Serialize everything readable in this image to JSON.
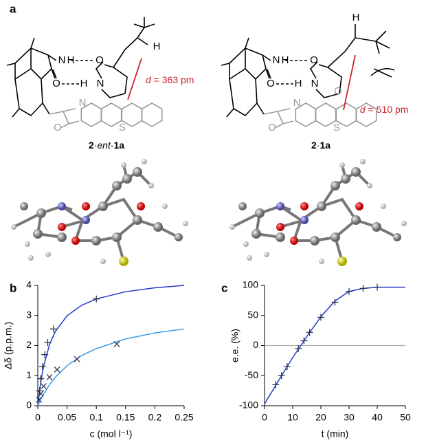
{
  "panel_labels": [
    "a",
    "b",
    "c"
  ],
  "structures": [
    {
      "compound": [
        "2",
        "·",
        "ent",
        "-",
        "1a"
      ],
      "distance": [
        "d",
        " = 363 pm"
      ],
      "atoms": [
        "N",
        "H",
        "O",
        "O",
        "H",
        "N",
        "H",
        "N",
        "O",
        "S"
      ]
    },
    {
      "compound": [
        "2",
        "·",
        "1a"
      ],
      "distance": [
        "d",
        " = 510 pm"
      ],
      "atoms": [
        "N",
        "H",
        "O",
        "O",
        "H",
        "N",
        "H",
        "N",
        "O",
        "O",
        "S"
      ]
    }
  ],
  "chart_data": [
    {
      "type": "scatter",
      "xlabel": "c (mol l⁻¹)",
      "ylabel": "Δδ (p.p.m.)",
      "xlim": [
        0,
        0.25
      ],
      "xticks": [
        0,
        0.05,
        0.1,
        0.15,
        0.2,
        0.25
      ],
      "ylim": [
        0,
        4
      ],
      "yticks": [
        0,
        1,
        2,
        3,
        4
      ],
      "series": [
        {
          "color": "#2438c8",
          "line": true,
          "x": [
            0,
            0.005,
            0.01,
            0.02,
            0.03,
            0.05,
            0.075,
            0.1,
            0.15,
            0.2,
            0.25
          ],
          "values": [
            0,
            0.78,
            1.32,
            2.03,
            2.47,
            2.99,
            3.34,
            3.55,
            3.79,
            3.92,
            4.0
          ]
        },
        {
          "color": "#3b9de6",
          "line": true,
          "x": [
            0,
            0.005,
            0.01,
            0.02,
            0.03,
            0.05,
            0.075,
            0.1,
            0.15,
            0.2,
            0.25
          ],
          "values": [
            0,
            0.21,
            0.39,
            0.7,
            0.95,
            1.33,
            1.67,
            1.9,
            2.22,
            2.42,
            2.55
          ]
        },
        {
          "color": "#2b3550",
          "marker": "plus",
          "x": [
            0.003,
            0.005,
            0.008,
            0.012,
            0.017,
            0.027,
            0.1
          ],
          "values": [
            0.5,
            0.9,
            1.3,
            1.7,
            2.1,
            2.55,
            3.55
          ]
        },
        {
          "color": "#2b3550",
          "marker": "cross",
          "x": [
            0.002,
            0.005,
            0.01,
            0.02,
            0.033,
            0.067,
            0.135
          ],
          "values": [
            0.2,
            0.4,
            0.65,
            0.95,
            1.2,
            1.55,
            2.05
          ]
        }
      ]
    },
    {
      "type": "scatter",
      "xlabel": "t (min)",
      "ylabel": "e.e. (%)",
      "xlim": [
        0,
        50
      ],
      "xticks": [
        0,
        10,
        20,
        30,
        40,
        50
      ],
      "ylim": [
        -100,
        100
      ],
      "yticks": [
        -100,
        -50,
        0,
        50,
        100
      ],
      "reference_line": {
        "y": 0,
        "color": "#aaaaaa"
      },
      "series": [
        {
          "color": "#2438c8",
          "line": true,
          "x": [
            0,
            5,
            10,
            15,
            20,
            25,
            30,
            35,
            40,
            45,
            50
          ],
          "values": [
            -97,
            -58,
            -20,
            15,
            48,
            74,
            90,
            95,
            97,
            97,
            97
          ]
        },
        {
          "color": "#2b3550",
          "marker": "plus",
          "x": [
            4,
            6,
            8,
            12,
            14,
            16,
            20,
            25,
            30,
            35,
            40
          ],
          "values": [
            -65,
            -50,
            -35,
            -5,
            8,
            22,
            47,
            72,
            90,
            95,
            97
          ]
        }
      ]
    }
  ]
}
